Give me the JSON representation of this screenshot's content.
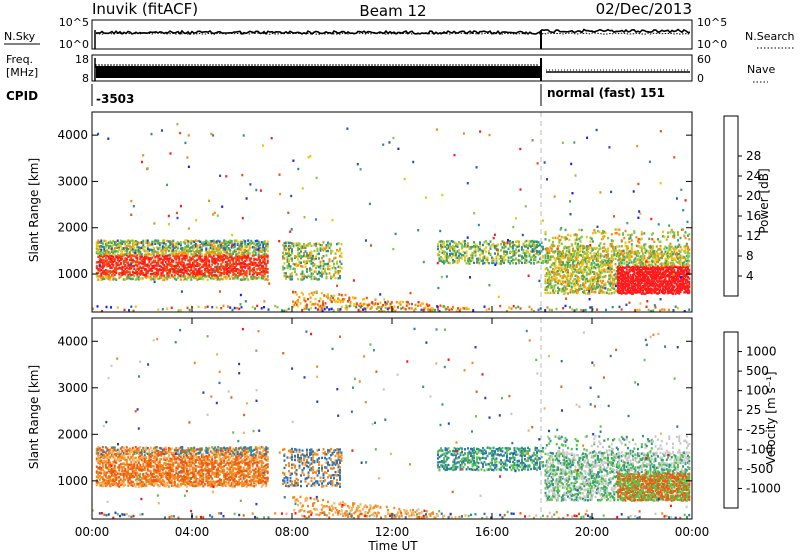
{
  "header": {
    "station": "Inuvik (fitACF)",
    "beam": "Beam 12",
    "date": "02/Dec/2013"
  },
  "top_panels": {
    "nsky_label": "N.Sky",
    "nsky_ticks": [
      "10^5",
      "10^0"
    ],
    "nsearch_label": "N.Search",
    "nsearch_ticks": [
      "10^5",
      "10^0"
    ],
    "freq_label_1": "Freq.",
    "freq_label_2": "[MHz]",
    "freq_ticks": [
      "18",
      "8"
    ],
    "nave_label": "Nave",
    "nave_ticks": [
      "60",
      "0"
    ],
    "cpid_label": "CPID",
    "cpid_values": [
      "-3503",
      "normal (fast) 151"
    ],
    "cpid_switch_hour": 18.0
  },
  "chart_data": [
    {
      "type": "heatmap",
      "name": "power",
      "ylabel": "Slant Range [km]",
      "ylim": [
        180,
        4500
      ],
      "yticks": [
        "1000",
        "2000",
        "3000",
        "4000"
      ],
      "xlim": [
        0,
        24
      ],
      "colorbar_label": "Power [dB]",
      "colorbar_ticks": [
        "4",
        "8",
        "12",
        "16",
        "20",
        "24",
        "28"
      ],
      "colors": [
        "#1a1aff",
        "#1f4fc0",
        "#2d8a8f",
        "#3fa860",
        "#8cc63f",
        "#f6c10e",
        "#f58a0c",
        "#f24a0c",
        "#ff1a1a"
      ]
    },
    {
      "type": "heatmap",
      "name": "velocity",
      "ylabel": "Slant Range [km]",
      "ylim": [
        180,
        4500
      ],
      "yticks": [
        "1000",
        "2000",
        "3000",
        "4000"
      ],
      "xlim": [
        0,
        24
      ],
      "xticks": [
        "00:00",
        "04:00",
        "08:00",
        "12:00",
        "16:00",
        "20:00",
        "00:00"
      ],
      "xlabel": "Time UT",
      "colorbar_label": "Velocity [m s⁻¹]",
      "colorbar_ticks": [
        "1000",
        "500",
        "100",
        "25",
        "-25",
        "-100",
        "-500",
        "-1000"
      ],
      "colors": [
        "#2340b8",
        "#2f74b0",
        "#2f9a7c",
        "#5cc24a",
        "#c8c8c8",
        "#f5b25a",
        "#f28a1e",
        "#ee5a10",
        "#ff1010"
      ]
    }
  ]
}
